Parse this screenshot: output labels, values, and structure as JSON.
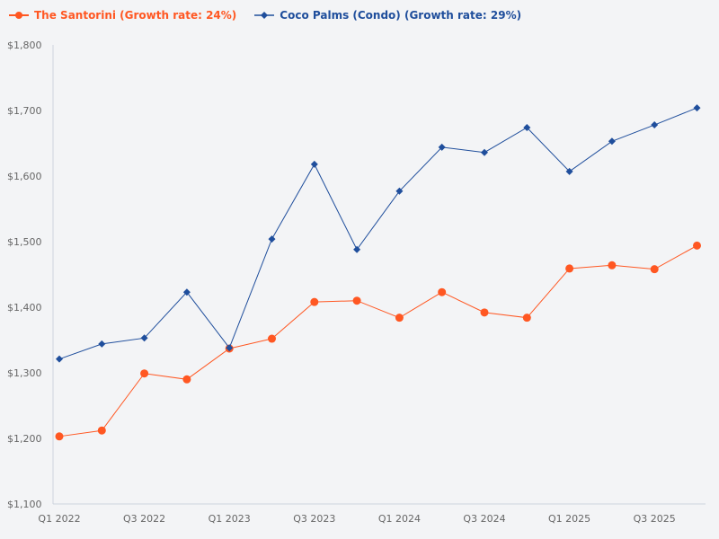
{
  "chart_data": {
    "type": "line",
    "title": "",
    "xlabel": "",
    "ylabel": "",
    "ylim": [
      1100,
      1800
    ],
    "y_ticks": [
      "$1,100",
      "$1,200",
      "$1,300",
      "$1,400",
      "$1,500",
      "$1,600",
      "$1,700",
      "$1,800"
    ],
    "y_tick_values": [
      1100,
      1200,
      1300,
      1400,
      1500,
      1600,
      1700,
      1800
    ],
    "categories": [
      "Q1 2022",
      "Q2 2022",
      "Q3 2022",
      "Q4 2022",
      "Q1 2023",
      "Q2 2023",
      "Q3 2023",
      "Q4 2023",
      "Q1 2024",
      "Q2 2024",
      "Q3 2024",
      "Q4 2024",
      "Q1 2025",
      "Q2 2025",
      "Q3 2025",
      "Q4 2025"
    ],
    "x_tick_labels": [
      "Q1 2022",
      "Q3 2022",
      "Q1 2023",
      "Q3 2023",
      "Q1 2024",
      "Q3 2024",
      "Q1 2025",
      "Q3 2025"
    ],
    "grid": false,
    "legend_position": "top-left",
    "series": [
      {
        "name": "The Santorini (Growth rate: 24%)",
        "color": "#ff5722",
        "marker": "circle",
        "values": [
          1203,
          1212,
          1299,
          1290,
          1337,
          1352,
          1408,
          1410,
          1384,
          1423,
          1392,
          1384,
          1459,
          1464,
          1458,
          1494
        ]
      },
      {
        "name": "Coco Palms (Condo) (Growth rate: 29%)",
        "color": "#1f4e9c",
        "marker": "diamond",
        "values": [
          1321,
          1344,
          1353,
          1423,
          1338,
          1504,
          1618,
          1488,
          1577,
          1644,
          1636,
          1674,
          1607,
          1653,
          1678,
          1704
        ]
      }
    ]
  }
}
